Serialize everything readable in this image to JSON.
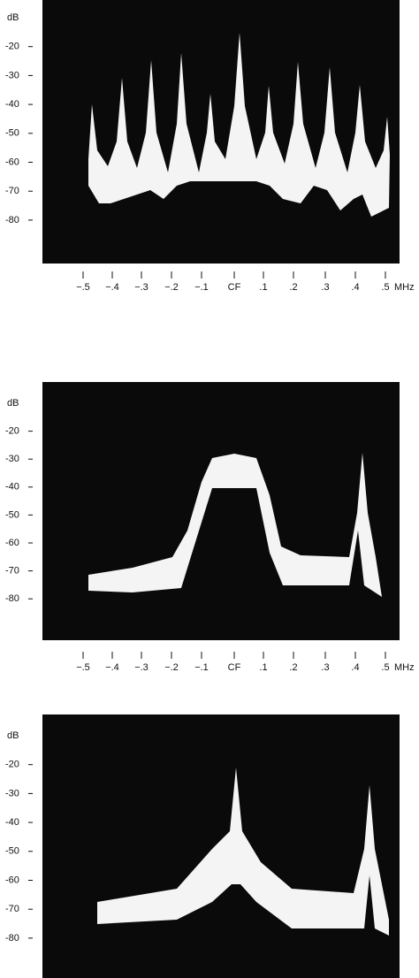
{
  "panels": [
    {
      "y_labels": [
        "dB",
        "-20",
        "-30",
        "-40",
        "-50",
        "-60",
        "-70",
        "-80"
      ],
      "x_labels": [
        "−.5",
        "−.4",
        "−.3",
        "−.2",
        "−.1",
        "CF",
        ".1",
        ".2",
        ".3",
        ".4",
        ".5"
      ],
      "x_unit": "MHz"
    },
    {
      "y_labels": [
        "dB",
        "-20",
        "-30",
        "-40",
        "-50",
        "-60",
        "-70",
        "-80"
      ],
      "x_labels": [
        "−.5",
        "−.4",
        "−.3",
        "−.2",
        "−.1",
        "CF",
        ".1",
        ".2",
        ".3",
        ".4",
        ".5"
      ],
      "x_unit": "MHz"
    },
    {
      "y_labels": [
        "dB",
        "-20",
        "-30",
        "-40",
        "-50",
        "-60",
        "-70",
        "-80"
      ]
    }
  ]
}
